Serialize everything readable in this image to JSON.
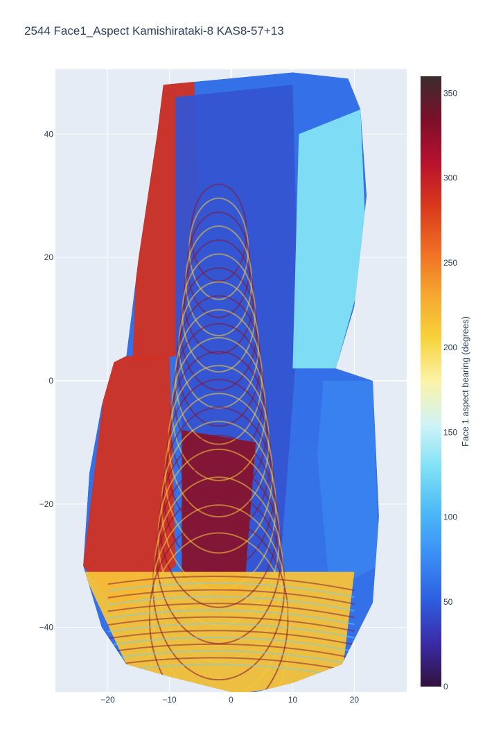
{
  "chart_data": {
    "type": "heatmap",
    "title": "2544  Face1_Aspect       Kamishirataki-8    KAS8-57+13",
    "xlabel": "",
    "ylabel": "",
    "xlim": [
      -28.5,
      28.5
    ],
    "ylim": [
      -50.5,
      50.5
    ],
    "x_ticks": [
      -20,
      -10,
      0,
      10,
      20
    ],
    "y_ticks": [
      -40,
      -20,
      0,
      20,
      40
    ],
    "x_tick_labels": [
      "−20",
      "−10",
      "0",
      "10",
      "20"
    ],
    "y_tick_labels": [
      "−40",
      "−20",
      "0",
      "20",
      "40"
    ],
    "grid": true,
    "colorbar": {
      "title": "Face 1 aspect bearing (degrees)",
      "range": [
        0,
        360
      ],
      "ticks": [
        0,
        50,
        100,
        150,
        200,
        250,
        300,
        350
      ],
      "tick_labels": [
        "0",
        "50",
        "100",
        "150",
        "200",
        "250",
        "300",
        "350"
      ],
      "colorscale": [
        "#30123b",
        "#4145ab",
        "#4675ed",
        "#39a2fc",
        "#1bcfd4",
        "#24eca6",
        "#61fc6c",
        "#a4fc3b",
        "#d1e834",
        "#f3c63a",
        "#fe9b2d",
        "#f36315",
        "#d93806",
        "#b11901",
        "#7a0402"
      ],
      "colorscale_display": [
        "#30123b",
        "#3b2ba8",
        "#2d5fe0",
        "#3b8ef5",
        "#4cb8f7",
        "#7ee0f5",
        "#cff3f7",
        "#fcf3a8",
        "#f7d23a",
        "#f6a630",
        "#ef6d25",
        "#d93a1c",
        "#b8122d",
        "#7c0f2a",
        "#3b2d2d"
      ]
    },
    "regions": [
      {
        "name": "upper-left-orange",
        "value": 290,
        "outline": [
          [
            -11,
            48
          ],
          [
            -6,
            49
          ],
          [
            -5,
            24
          ],
          [
            -9,
            4
          ],
          [
            -16,
            3
          ],
          [
            -15,
            28
          ]
        ]
      },
      {
        "name": "left-orange",
        "value": 290,
        "outline": [
          [
            -20,
            4
          ],
          [
            -10,
            4
          ],
          [
            -9,
            -30
          ],
          [
            -18,
            -38
          ],
          [
            -24,
            -30
          ],
          [
            -21,
            -5
          ]
        ]
      },
      {
        "name": "center-blue-ridges",
        "value": 45,
        "outline": [
          [
            -9,
            46
          ],
          [
            10,
            48
          ],
          [
            11,
            10
          ],
          [
            8,
            -30
          ],
          [
            -2,
            -38
          ],
          [
            -7,
            -20
          ],
          [
            -9,
            5
          ]
        ]
      },
      {
        "name": "lower-center-red",
        "value": 330,
        "outline": [
          [
            -8,
            -8
          ],
          [
            4,
            -10
          ],
          [
            2,
            -36
          ],
          [
            -8,
            -32
          ]
        ]
      },
      {
        "name": "right-upper-light-blue",
        "value": 130,
        "outline": [
          [
            11,
            40
          ],
          [
            21,
            44
          ],
          [
            22,
            20
          ],
          [
            17,
            2
          ],
          [
            10,
            2
          ]
        ]
      },
      {
        "name": "right-middle-blue",
        "value": 70,
        "outline": [
          [
            15,
            0
          ],
          [
            23,
            0
          ],
          [
            24,
            -30
          ],
          [
            16,
            -34
          ],
          [
            14,
            -12
          ]
        ]
      },
      {
        "name": "bottom-yellow",
        "value": 215,
        "outline": [
          [
            -24,
            -31
          ],
          [
            20,
            -31
          ],
          [
            18,
            -48
          ],
          [
            0,
            -51
          ],
          [
            -17,
            -46
          ]
        ]
      }
    ]
  }
}
